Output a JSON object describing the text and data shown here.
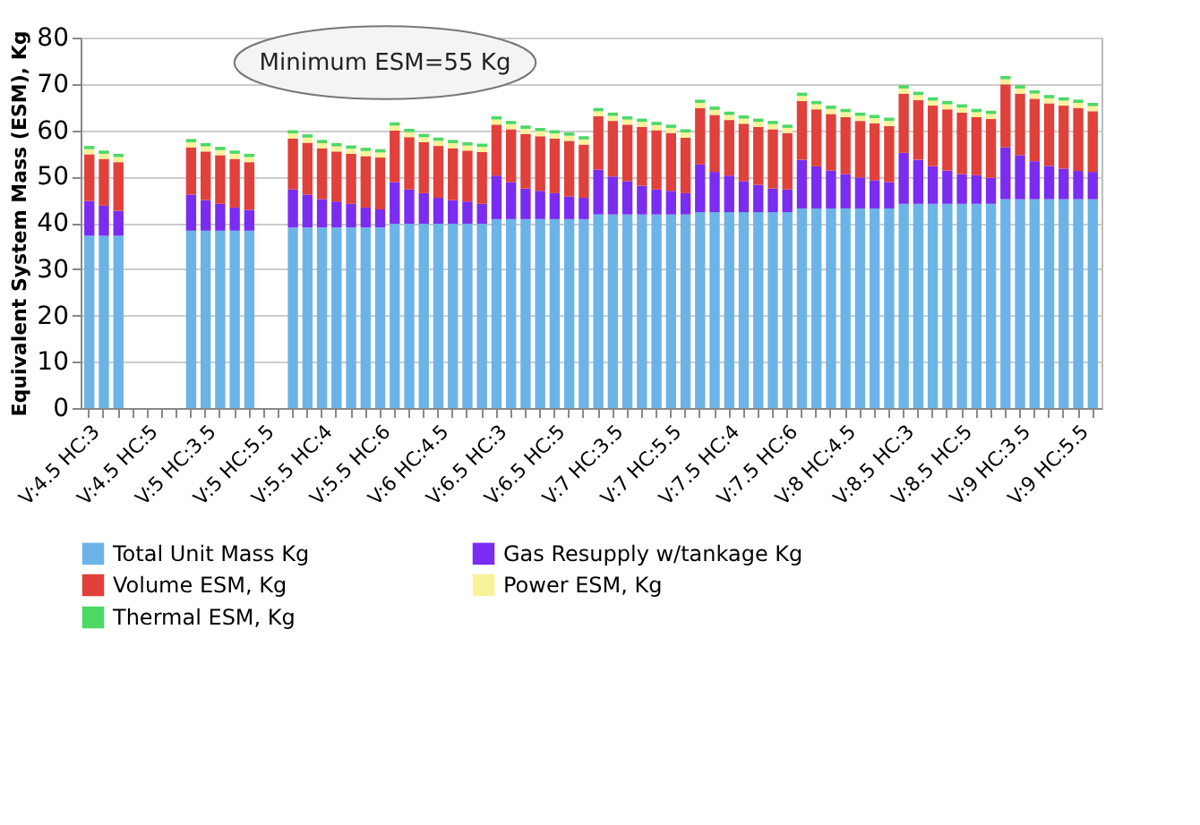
{
  "chart_data": {
    "type": "bar",
    "stacked": true,
    "ylabel": "Equivalent System Mass (ESM), Kg",
    "categories": [
      "V:4.5 HC:3",
      null,
      null,
      null,
      "V:4.5 HC:5",
      null,
      null,
      null,
      "V:5 HC:3.5",
      null,
      null,
      null,
      "V:5 HC:5.5",
      null,
      null,
      null,
      "V:5.5 HC:4",
      null,
      null,
      null,
      "V:5.5 HC:6",
      null,
      null,
      null,
      "V:6 HC:4.5",
      null,
      null,
      null,
      "V:6.5 HC:3",
      null,
      null,
      null,
      "V:6.5 HC:5",
      null,
      null,
      null,
      "V:7 HC:3.5",
      null,
      null,
      null,
      "V:7 HC:5.5",
      null,
      null,
      null,
      "V:7.5 HC:4",
      null,
      null,
      null,
      "V:7.5 HC:6",
      null,
      null,
      null,
      "V:8 HC:4.5",
      null,
      null,
      null,
      "V:8.5 HC:3",
      null,
      null,
      null,
      "V:8.5 HC:5",
      null,
      null,
      null,
      "V:9 HC:3.5",
      null,
      null,
      null,
      "V:9 HC:5.5",
      null
    ],
    "series": [
      {
        "name": "Total Unit Mass Kg",
        "color": "#6cb4e8",
        "values": [
          37.2,
          37.2,
          37.2,
          null,
          null,
          null,
          null,
          38.3,
          38.3,
          38.3,
          38.3,
          38.3,
          null,
          null,
          39.0,
          39.0,
          39.0,
          39.0,
          39.0,
          39.0,
          39.0,
          39.8,
          39.8,
          39.8,
          39.8,
          39.8,
          39.8,
          39.8,
          40.8,
          40.8,
          40.8,
          40.8,
          40.8,
          40.8,
          40.8,
          41.8,
          41.8,
          41.8,
          41.8,
          41.8,
          41.8,
          41.8,
          42.3,
          42.3,
          42.3,
          42.3,
          42.3,
          42.3,
          42.3,
          43.1,
          43.1,
          43.1,
          43.1,
          43.1,
          43.1,
          43.1,
          44.1,
          44.1,
          44.1,
          44.1,
          44.1,
          44.1,
          44.1,
          45.1,
          45.1,
          45.1,
          45.1,
          45.1,
          45.1,
          45.1
        ]
      },
      {
        "name": "Gas Resupply w/tankage Kg",
        "color": "#7a2cf0",
        "values": [
          7.5,
          6.5,
          5.4,
          null,
          null,
          null,
          null,
          7.8,
          6.6,
          5.8,
          5.0,
          4.5,
          null,
          null,
          8.2,
          7.1,
          6.1,
          5.6,
          5.1,
          4.3,
          3.9,
          9.0,
          7.4,
          6.6,
          5.6,
          5.1,
          4.8,
          4.3,
          9.4,
          8.0,
          6.6,
          6.1,
          5.6,
          4.9,
          4.6,
          9.7,
          8.2,
          7.2,
          6.2,
          5.4,
          5.1,
          4.6,
          10.3,
          8.7,
          7.9,
          6.7,
          5.9,
          5.1,
          4.9,
          10.5,
          9.1,
          8.2,
          7.4,
          6.7,
          6.1,
          5.7,
          11.0,
          9.5,
          8.1,
          7.2,
          6.4,
          6.2,
          5.6,
          11.2,
          9.5,
          8.2,
          7.2,
          6.6,
          6.1,
          5.9
        ]
      },
      {
        "name": "Volume ESM, Kg",
        "color": "#e0413a",
        "values": [
          10.1,
          10.1,
          10.5,
          null,
          null,
          null,
          null,
          10.2,
          10.5,
          10.5,
          10.5,
          10.3,
          null,
          null,
          11.0,
          11.2,
          11.0,
          10.8,
          10.8,
          11.1,
          11.2,
          11.1,
          11.3,
          11.0,
          11.2,
          11.2,
          11.0,
          11.2,
          11.0,
          11.4,
          11.8,
          11.8,
          11.8,
          12.0,
          11.5,
          11.5,
          12.0,
          12.2,
          12.7,
          12.8,
          12.5,
          12.0,
          12.2,
          12.3,
          12.0,
          12.4,
          12.5,
          12.8,
          12.2,
          12.7,
          12.3,
          12.2,
          12.3,
          12.2,
          12.3,
          12.1,
          12.8,
          12.9,
          13.1,
          13.2,
          13.3,
          12.5,
          12.7,
          13.6,
          13.3,
          13.5,
          13.5,
          13.6,
          13.6,
          13.1
        ]
      },
      {
        "name": "Power ESM, Kg",
        "color": "#f8f29a",
        "values": [
          1.1,
          1.1,
          1.1,
          null,
          null,
          null,
          null,
          1.1,
          1.1,
          1.1,
          1.1,
          1.1,
          null,
          null,
          1.1,
          1.1,
          1.1,
          1.1,
          1.1,
          1.1,
          1.1,
          1.1,
          1.1,
          1.1,
          1.1,
          1.1,
          1.1,
          1.1,
          1.1,
          1.1,
          1.1,
          1.1,
          1.1,
          1.1,
          1.1,
          1.1,
          1.1,
          1.1,
          1.1,
          1.1,
          1.1,
          1.1,
          1.1,
          1.1,
          1.1,
          1.1,
          1.1,
          1.1,
          1.1,
          1.1,
          1.1,
          1.1,
          1.1,
          1.1,
          1.1,
          1.1,
          1.1,
          1.1,
          1.1,
          1.1,
          1.1,
          1.1,
          1.1,
          1.1,
          1.1,
          1.1,
          1.1,
          1.1,
          1.1,
          1.1
        ]
      },
      {
        "name": "Thermal ESM, Kg",
        "color": "#4cd964",
        "values": [
          0.7,
          0.7,
          0.7,
          null,
          null,
          null,
          null,
          0.7,
          0.7,
          0.7,
          0.7,
          0.7,
          null,
          null,
          0.7,
          0.7,
          0.7,
          0.7,
          0.7,
          0.7,
          0.7,
          0.7,
          0.7,
          0.7,
          0.7,
          0.7,
          0.7,
          0.7,
          0.7,
          0.7,
          0.7,
          0.7,
          0.7,
          0.7,
          0.7,
          0.7,
          0.7,
          0.7,
          0.7,
          0.7,
          0.7,
          0.7,
          0.7,
          0.7,
          0.7,
          0.7,
          0.7,
          0.7,
          0.7,
          0.7,
          0.7,
          0.7,
          0.7,
          0.7,
          0.7,
          0.7,
          0.7,
          0.7,
          0.7,
          0.7,
          0.7,
          0.7,
          0.7,
          0.7,
          0.7,
          0.7,
          0.7,
          0.7,
          0.7,
          0.7
        ]
      }
    ],
    "ylim": [
      0,
      80
    ],
    "yticks": [
      0,
      10,
      20,
      30,
      40,
      50,
      60,
      70,
      80
    ],
    "grid": "y",
    "legend": "bottom",
    "annotations": [
      "Minimum ESM=55 Kg"
    ]
  }
}
